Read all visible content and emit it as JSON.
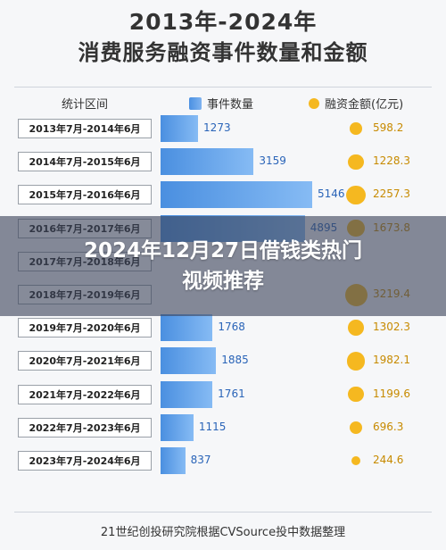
{
  "chart_title_line1": "2013年-2024年",
  "chart_title_line2": "消费服务融资事件数量和金额",
  "header": {
    "period": "统计区间",
    "count": "事件数量",
    "amount": "融资金额(亿元)"
  },
  "overlay_title": "2024年12月27日借钱类热门视频推荐",
  "source": "21世纪创投研究院根据CVSource投中数据整理",
  "colors": {
    "bar": "#4a8fe0",
    "dot": "#f5b820",
    "overlay": "#3c445a"
  },
  "chart_data": {
    "type": "bar",
    "title": "2013年-2024年 消费服务融资事件数量和金额",
    "categories": [
      "2013年7月-2014年6月",
      "2014年7月-2015年6月",
      "2015年7月-2016年6月",
      "2016年7月-2017年6月",
      "2017年7月-2018年6月",
      "2018年7月-2019年6月",
      "2019年7月-2020年6月",
      "2020年7月-2021年6月",
      "2021年7月-2022年6月",
      "2022年7月-2023年6月",
      "2023年7月-2024年6月"
    ],
    "series": [
      {
        "name": "事件数量",
        "values": [
          1273,
          3159,
          5146,
          4895,
          null,
          null,
          1768,
          1885,
          1761,
          1115,
          837
        ],
        "labels": [
          "1273",
          "3159",
          "5146",
          "4895",
          "",
          "",
          "1768",
          "1885",
          "1761",
          "1115",
          "837"
        ]
      },
      {
        "name": "融资金额(亿元)",
        "values": [
          598.2,
          1228.3,
          2257.3,
          1673.8,
          null,
          3219.4,
          1302.3,
          1982.1,
          1199.6,
          696.3,
          244.6
        ],
        "labels": [
          "598.2",
          "1228.3",
          "2257.3",
          "1673.8",
          "",
          "3219.4",
          "1302.3",
          "1982.1",
          "1199.6",
          "696.3",
          "244.6"
        ]
      }
    ]
  }
}
